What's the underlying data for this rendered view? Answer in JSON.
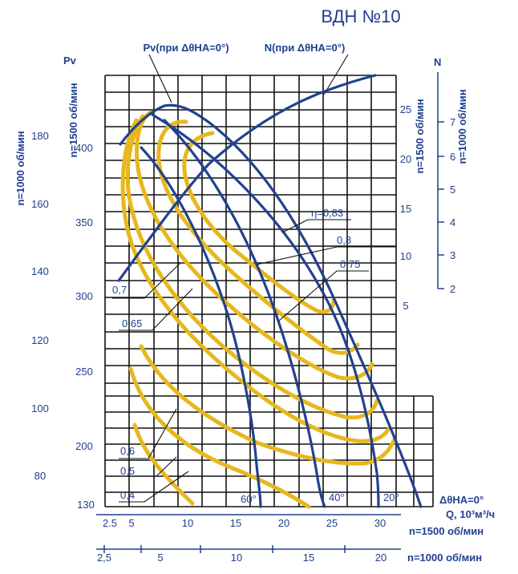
{
  "colors": {
    "blue": "#1f3f8f",
    "yellow": "#e6b81e",
    "grid": "#111111"
  },
  "chart_data": {
    "type": "line",
    "title": "ВДН №10",
    "top_labels": {
      "pv": "Pv(при ΔθНА=0°)",
      "n": "N(при ΔθНА=0°)"
    },
    "axes": {
      "left_pv_title": "Pv",
      "left_rpm_1000": "n=1000 об/мин",
      "left_rpm_1500": "n=1500 об/мин",
      "pv_1000_ticks": [
        "180",
        "160",
        "140",
        "120",
        "100",
        "80"
      ],
      "pv_1500_ticks": [
        "400",
        "350",
        "300",
        "250",
        "200",
        "130"
      ],
      "right_n_title": "N",
      "right_rpm_1500": "n=1500 об/мин",
      "right_rpm_1000": "n=1000 об/мин",
      "n_1500_ticks": [
        "25",
        "20",
        "15",
        "10",
        "5"
      ],
      "n_1000_ticks": [
        "7",
        "6",
        "5",
        "4",
        "3",
        "2"
      ],
      "q_label": "Q, 10³м³/ч",
      "q_1500_label": "n=1500 об/мин",
      "q_1000_label": "n=1000 об/мин",
      "q_1500_ticks": [
        "2.5",
        "5",
        "10",
        "15",
        "20",
        "25",
        "30"
      ],
      "q_1000_ticks": [
        "2,5",
        "5",
        "10",
        "15",
        "20"
      ]
    },
    "vane_angle_label": "ΔθНА=0°",
    "vane_angles": [
      "60°",
      "40°",
      "20°"
    ],
    "efficiency_labels": [
      "η=0,83",
      "0,8",
      "0,75",
      "0,7",
      "0,65",
      "0,6",
      "0,5",
      "0,4"
    ],
    "series": [
      {
        "name": "Pv (ΔθНА=0°)",
        "q_1500": [
          5.3,
          7,
          8.5,
          11,
          15,
          20,
          25,
          28.5
        ],
        "pv_1500": [
          375,
          395,
          402,
          397,
          370,
          315,
          240,
          135
        ]
      },
      {
        "name": "N (ΔθНА=0°)",
        "q_1500": [
          3.8,
          7,
          10,
          14,
          18,
          22,
          26,
          28.5
        ],
        "n_1500": [
          7,
          12,
          15,
          18,
          21,
          24,
          26,
          27
        ]
      },
      {
        "name": "60°",
        "q_1500": [
          6.5,
          10,
          14,
          16,
          17
        ],
        "pv_1500": [
          375,
          330,
          250,
          180,
          130
        ]
      },
      {
        "name": "40°",
        "q_1500": [
          8,
          12,
          18,
          22,
          23.5
        ],
        "pv_1500": [
          390,
          345,
          265,
          175,
          130
        ]
      },
      {
        "name": "20°",
        "q_1500": [
          8,
          13,
          19,
          25,
          28.5
        ],
        "pv_1500": [
          400,
          355,
          290,
          210,
          130
        ]
      }
    ]
  }
}
